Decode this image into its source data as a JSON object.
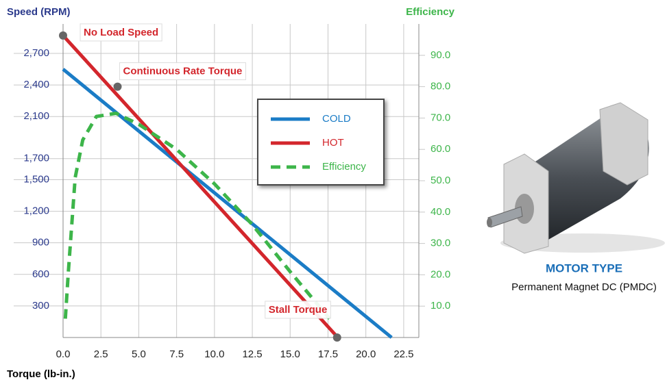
{
  "chart_data": {
    "type": "line",
    "y_label": "Speed (RPM)",
    "y2_label": "Efficiency",
    "x_label": "Torque (lb-in.)",
    "xlim": [
      0,
      23.5
    ],
    "ylim": [
      0,
      2980
    ],
    "y2lim": [
      0,
      100
    ],
    "xticks": [
      {
        "value": 0,
        "label": "0.0"
      },
      {
        "value": 2.5,
        "label": "2.5"
      },
      {
        "value": 5,
        "label": "5.0"
      },
      {
        "value": 7.5,
        "label": "7.5"
      },
      {
        "value": 10,
        "label": "10.0"
      },
      {
        "value": 12.5,
        "label": "12.5"
      },
      {
        "value": 15,
        "label": "15.0"
      },
      {
        "value": 17.5,
        "label": "17.5"
      },
      {
        "value": 20,
        "label": "20.0"
      },
      {
        "value": 22.5,
        "label": "22.5"
      }
    ],
    "yticks": [
      300,
      600,
      900,
      {
        "value": 1200,
        "label": "1,200"
      },
      {
        "value": 1500,
        "label": "1,500"
      },
      {
        "value": 1700,
        "label": "1,700"
      },
      {
        "value": 2100,
        "label": "2,100"
      },
      {
        "value": 2400,
        "label": "2,400"
      },
      {
        "value": 2700,
        "label": "2,700"
      }
    ],
    "y2ticks": [
      {
        "value": 10,
        "label": "10.0"
      },
      {
        "value": 20,
        "label": "20.0"
      },
      {
        "value": 30,
        "label": "30.0"
      },
      {
        "value": 40,
        "label": "40.0"
      },
      {
        "value": 50,
        "label": "50.0"
      },
      {
        "value": 60,
        "label": "60.0"
      },
      {
        "value": 70,
        "label": "70.0"
      },
      {
        "value": 80,
        "label": "80.0"
      },
      {
        "value": 90,
        "label": "90.0"
      }
    ],
    "grid": true,
    "legend": "upper right",
    "series": [
      {
        "name": "COLD",
        "color": "#1b7cc6",
        "x": [
          0,
          21.7
        ],
        "values": [
          2550,
          0
        ]
      },
      {
        "name": "HOT",
        "color": "#d3262c",
        "x": [
          0,
          18.15
        ],
        "values": [
          2870,
          0
        ]
      },
      {
        "name": "Efficiency",
        "color": "#3db54a",
        "axis": "y2",
        "dashed": true,
        "x": [
          0.15,
          0.35,
          0.8,
          1.3,
          2.2,
          3.5,
          5,
          7.5,
          10,
          12.5,
          15,
          17.6
        ],
        "values": [
          6,
          21,
          51,
          63,
          70.5,
          71.5,
          68,
          60,
          49,
          36,
          21,
          6
        ]
      }
    ],
    "annotations": [
      {
        "text": "No Load Speed",
        "x": 0,
        "y": 2870
      },
      {
        "text": "Continuous Rate Torque",
        "x": 3.6,
        "y": 2384
      },
      {
        "text": "Stall Torque",
        "x": 18.1,
        "y": 0
      }
    ]
  },
  "caption": {
    "title": "MOTOR TYPE",
    "subtitle": "Permanent Magnet DC (PMDC)"
  }
}
